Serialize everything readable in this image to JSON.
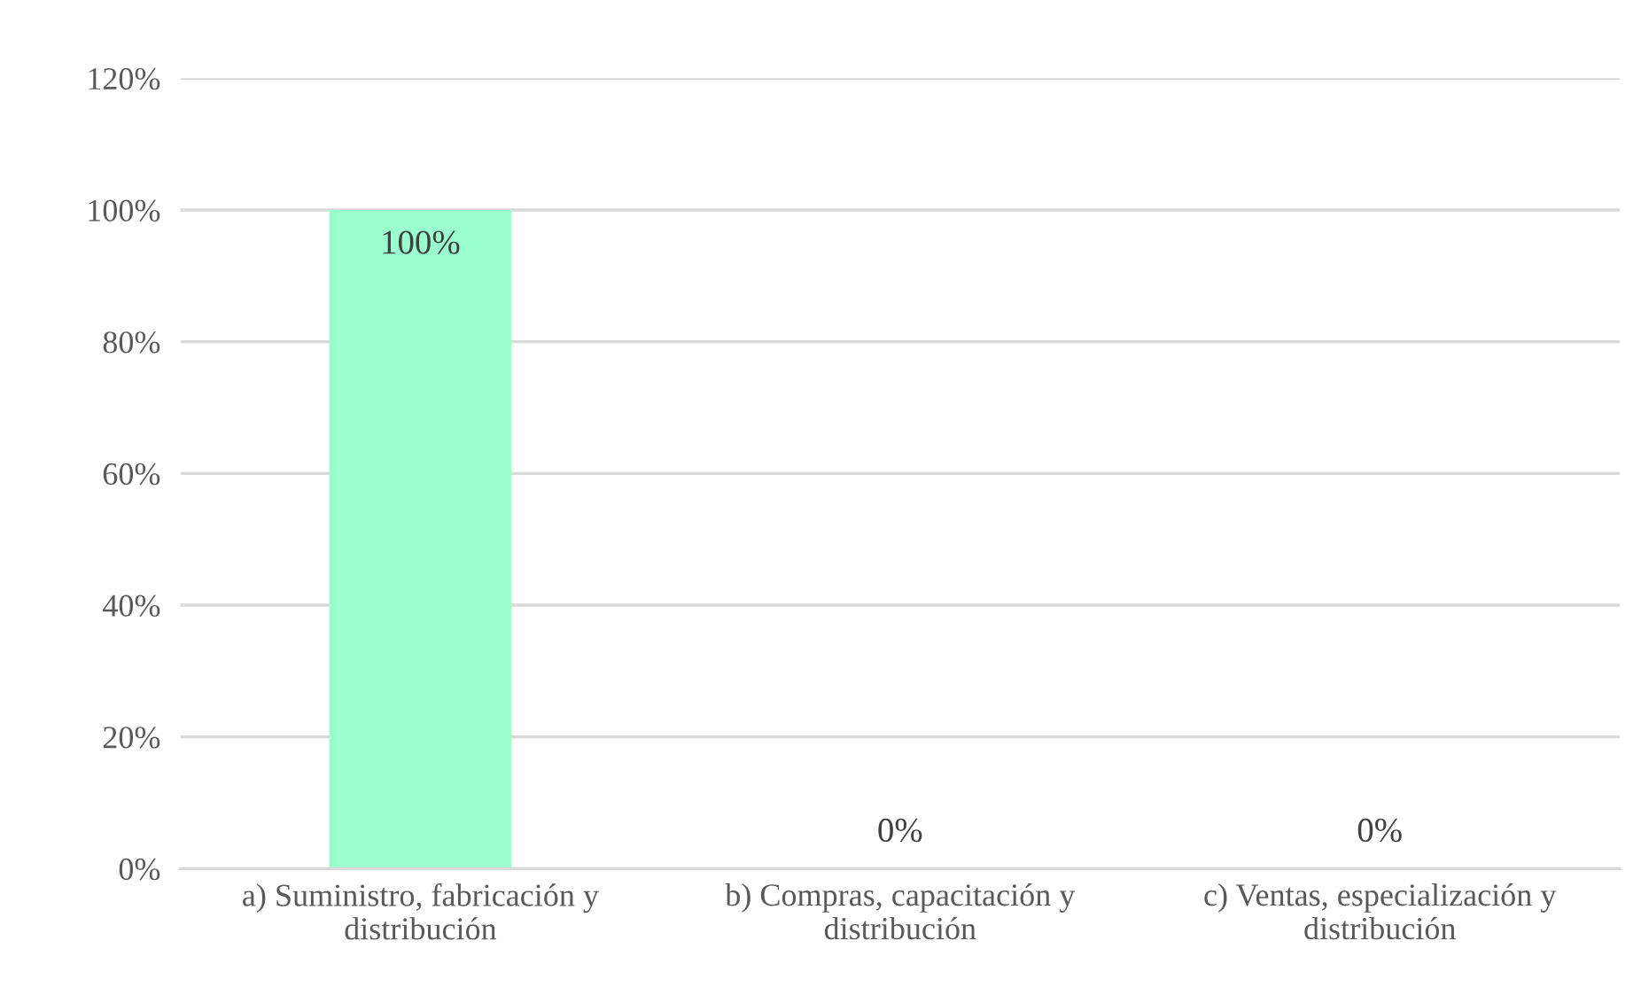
{
  "chart_data": {
    "type": "bar",
    "categories": [
      "a) Suministro, fabricación y distribución",
      "b) Compras, capacitación y distribución",
      "c) Ventas, especialización y distribución"
    ],
    "values": [
      100,
      0,
      0
    ],
    "color": "#99ffcc",
    "value_labels": [
      "100%",
      "0%",
      "0%"
    ],
    "ylim": [
      0,
      120
    ],
    "yticks": [
      {
        "value": 0,
        "label": "0%"
      },
      {
        "value": 20,
        "label": "20%"
      },
      {
        "value": 40,
        "label": "40%"
      },
      {
        "value": 60,
        "label": "60%"
      },
      {
        "value": 80,
        "label": "80%"
      },
      {
        "value": 100,
        "label": "100%"
      },
      {
        "value": 120,
        "label": "120%"
      }
    ],
    "grid": "y",
    "legend": false
  }
}
